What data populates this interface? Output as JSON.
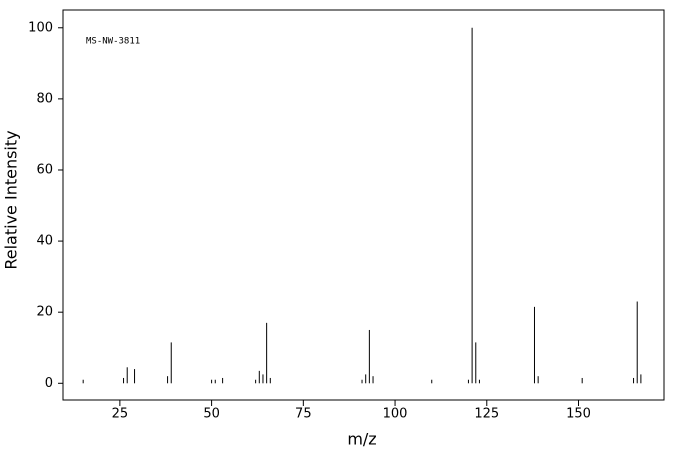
{
  "chart_data": {
    "type": "stem",
    "title": "MS-NW-3811",
    "x_label": "m/z",
    "y_label": "Relative Intensity",
    "x": [
      15,
      26,
      27,
      29,
      38,
      39,
      50,
      51,
      53,
      62,
      63,
      64,
      65,
      66,
      91,
      92,
      93,
      94,
      110,
      120,
      121,
      122,
      123,
      138,
      139,
      151,
      165,
      166,
      167
    ],
    "values": [
      1,
      1.5,
      4.5,
      4,
      2,
      11.5,
      1,
      1,
      1.5,
      1,
      3.5,
      2.5,
      17,
      1.5,
      1,
      2.5,
      15,
      2,
      1,
      1,
      100,
      11.5,
      1,
      21.5,
      2,
      1.5,
      1.5,
      23,
      2.5
    ],
    "color": "#000000",
    "xlim": [
      9.5,
      173.3
    ],
    "ylim": [
      -4.7,
      105
    ],
    "xticks": [
      25,
      50,
      75,
      100,
      125,
      150
    ],
    "yticks": [
      0,
      20,
      40,
      60,
      80,
      100
    ]
  }
}
